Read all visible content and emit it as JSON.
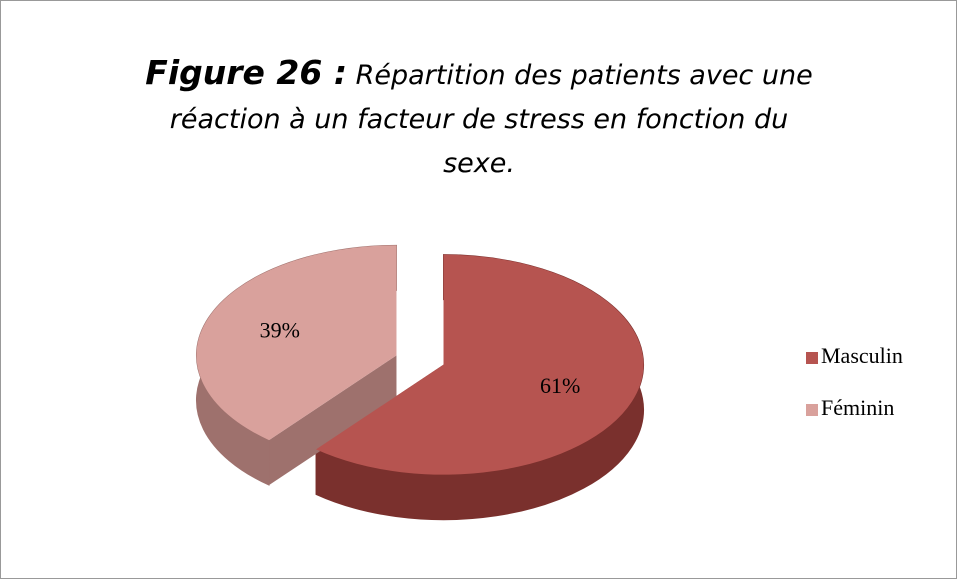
{
  "chart_data": {
    "type": "pie3d",
    "figure_label": "Figure 26 :",
    "title": [
      "Répartition des patients avec une",
      "réaction à un facteur de stress en fonction du",
      "sexe."
    ],
    "categories": [
      "Masculin",
      "Féminin"
    ],
    "values": [
      61,
      39
    ],
    "value_labels": [
      "61%",
      "39%"
    ],
    "colors": [
      "#b65450",
      "#d9a19c"
    ],
    "side_colors": [
      "#7a302d",
      "#9e716d"
    ],
    "legend": "right"
  }
}
